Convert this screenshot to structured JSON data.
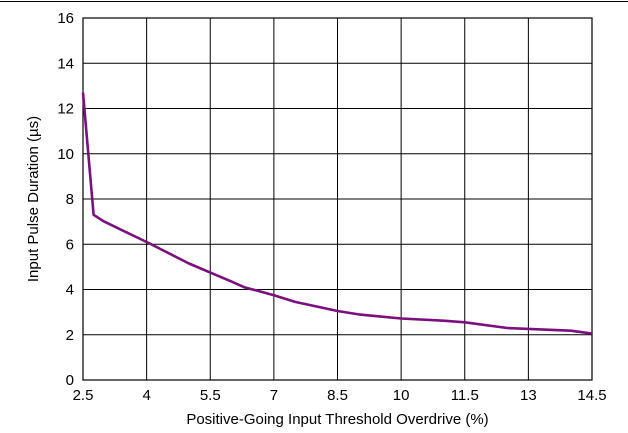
{
  "chart_data": {
    "type": "line",
    "xlabel": "Positive-Going Input Threshold Overdrive (%)",
    "ylabel": "Input Pulse Duration (µs)",
    "xlim": [
      2.5,
      14.5
    ],
    "ylim": [
      0,
      16
    ],
    "x_ticks": [
      "2.5",
      "4",
      "5.5",
      "7",
      "8.5",
      "10",
      "11.5",
      "13",
      "14.5"
    ],
    "y_ticks": [
      "0",
      "2",
      "4",
      "6",
      "8",
      "10",
      "12",
      "14",
      "16"
    ],
    "grid": true,
    "line_color": "#7b0f7f",
    "series": [
      {
        "x": [
          2.5,
          2.75,
          3.0,
          4.0,
          5.0,
          6.0,
          6.3,
          7.0,
          7.5,
          8.5,
          9.0,
          10.0,
          11.0,
          11.5,
          12.5,
          13.5,
          14.0,
          14.5
        ],
        "y": [
          12.7,
          7.3,
          7.0,
          6.1,
          5.15,
          4.35,
          4.1,
          3.75,
          3.45,
          3.05,
          2.9,
          2.72,
          2.62,
          2.55,
          2.3,
          2.22,
          2.18,
          2.05
        ]
      }
    ]
  }
}
